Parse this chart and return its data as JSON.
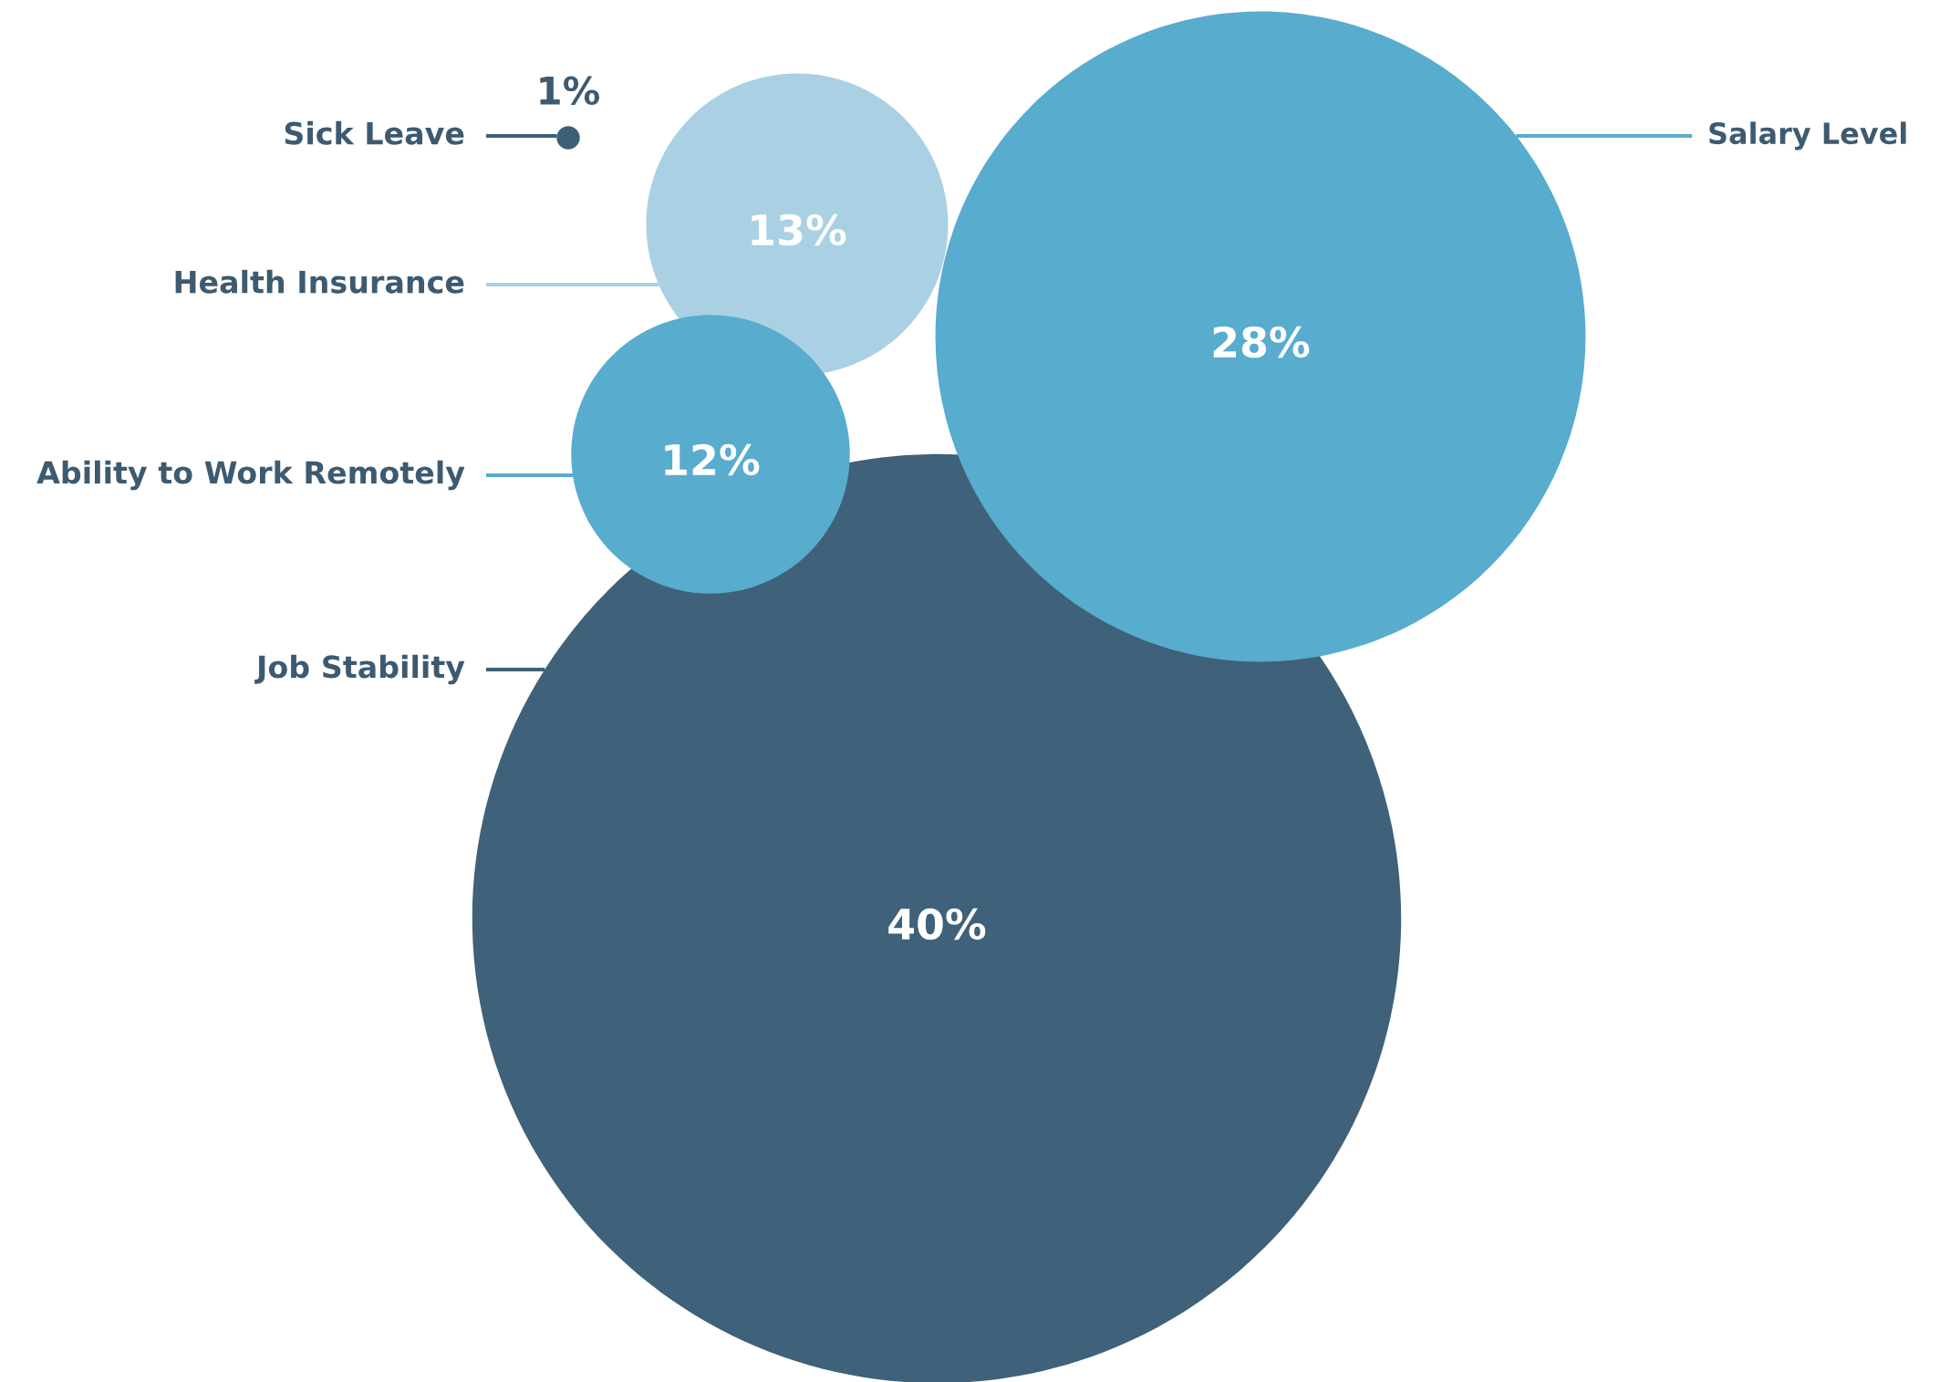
{
  "chart_data": {
    "type": "other",
    "categories": [
      "Sick Leave",
      "Health Insurance",
      "Ability to Work Remotely",
      "Job Stability",
      "Salary Level"
    ],
    "values": [
      1,
      13,
      12,
      40,
      28
    ],
    "value_labels": [
      "1%",
      "13%",
      "12%",
      "40%",
      "28%"
    ],
    "colors": [
      "#3d6078",
      "#aad0e4",
      "#58acce",
      "#3f6179",
      "#58acce"
    ]
  }
}
